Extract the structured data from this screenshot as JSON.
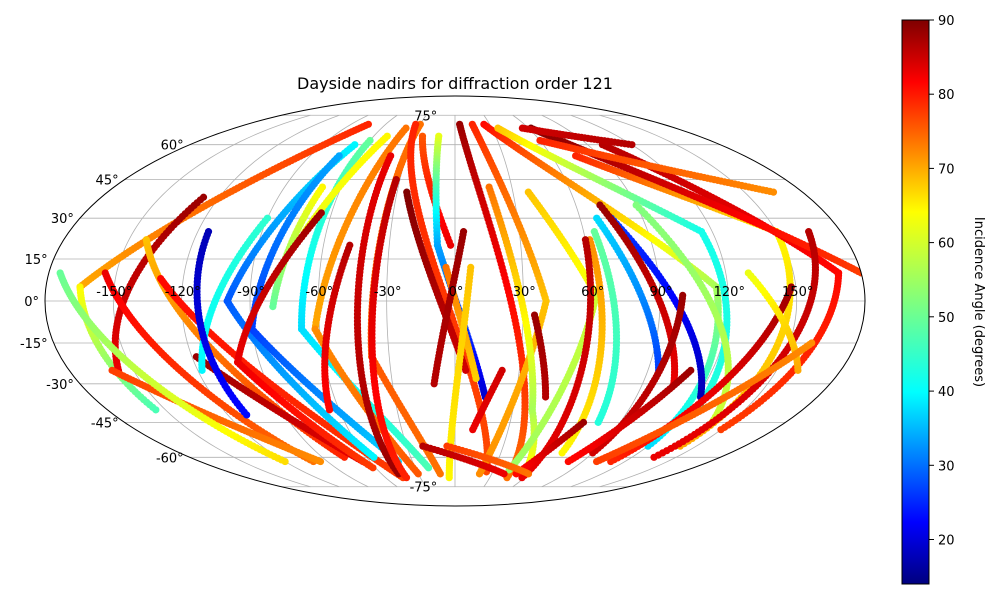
{
  "chart_data": {
    "type": "scatter",
    "title": "Dayside nadirs for diffraction order 121",
    "projection": "mollweide",
    "grid": true,
    "x_ticks": [
      "-150°",
      "-120°",
      "-90°",
      "-60°",
      "-30°",
      "0°",
      "30°",
      "60°",
      "90°",
      "120°",
      "150°"
    ],
    "y_ticks": [
      "-75°",
      "-60°",
      "-45°",
      "-30°",
      "-15°",
      "0°",
      "15°",
      "30°",
      "45°",
      "60°",
      "75°"
    ],
    "colorbar": {
      "label": "Incidence Angle (degrees)",
      "colormap": "jet",
      "range": [
        14,
        90
      ],
      "ticks": [
        "20",
        "30",
        "40",
        "50",
        "60",
        "70",
        "80",
        "90"
      ]
    },
    "lat_range": [
      -70,
      70
    ],
    "tracks": [
      {
        "lon_start": -75,
        "lat_start": 70,
        "lon_end": -165,
        "lat_end": 5,
        "inc_start": 78,
        "inc_end": 68
      },
      {
        "lon_start": -165,
        "lat_start": 5,
        "lon_end": -155,
        "lat_end": -40,
        "inc_start": 62,
        "inc_end": 48
      },
      {
        "lon_start": -128,
        "lat_start": 38,
        "lon_end": -157,
        "lat_end": -25,
        "inc_start": 88,
        "inc_end": 82
      },
      {
        "lon_start": -155,
        "lat_start": 10,
        "lon_end": -100,
        "lat_end": -62,
        "inc_start": 82,
        "inc_end": 72
      },
      {
        "lon_start": -142,
        "lat_start": 22,
        "lon_end": -75,
        "lat_end": -60,
        "inc_start": 66,
        "inc_end": 78
      },
      {
        "lon_start": -130,
        "lat_start": 8,
        "lon_end": -45,
        "lat_end": -70,
        "inc_start": 80,
        "inc_end": 76
      },
      {
        "lon_start": -118,
        "lat_start": -20,
        "lon_end": -65,
        "lat_end": -62,
        "inc_start": 88,
        "inc_end": 82
      },
      {
        "lon_start": -90,
        "lat_start": 30,
        "lon_end": -118,
        "lat_end": -25,
        "inc_start": 46,
        "inc_end": 42
      },
      {
        "lon_start": -115,
        "lat_start": 25,
        "lon_end": -110,
        "lat_end": -42,
        "inc_start": 18,
        "inc_end": 24
      },
      {
        "lon_start": -68,
        "lat_start": 60,
        "lon_end": -100,
        "lat_end": 0,
        "inc_start": 42,
        "inc_end": 30
      },
      {
        "lon_start": -100,
        "lat_start": 0,
        "lon_end": -55,
        "lat_end": -60,
        "inc_start": 30,
        "inc_end": 42
      },
      {
        "lon_start": -72,
        "lat_start": 55,
        "lon_end": -90,
        "lat_end": -10,
        "inc_start": 36,
        "inc_end": 28
      },
      {
        "lon_start": -90,
        "lat_start": -10,
        "lon_end": -40,
        "lat_end": -62,
        "inc_start": 28,
        "inc_end": 40
      },
      {
        "lon_start": -70,
        "lat_start": 42,
        "lon_end": -80,
        "lat_end": -2,
        "inc_start": 62,
        "inc_end": 50
      },
      {
        "lon_start": -60,
        "lat_start": 62,
        "lon_end": -68,
        "lat_end": -10,
        "inc_start": 50,
        "inc_end": 40
      },
      {
        "lon_start": -68,
        "lat_start": -10,
        "lon_end": -20,
        "lat_end": -65,
        "inc_start": 40,
        "inc_end": 48
      },
      {
        "lon_start": -50,
        "lat_start": 64,
        "lon_end": -70,
        "lat_end": 25,
        "inc_start": 62,
        "inc_end": 60
      },
      {
        "lon_start": -65,
        "lat_start": 32,
        "lon_end": -100,
        "lat_end": -22,
        "inc_start": 88,
        "inc_end": 82
      },
      {
        "lon_start": -100,
        "lat_start": -22,
        "lon_end": -62,
        "lat_end": -65,
        "inc_start": 82,
        "inc_end": 76
      },
      {
        "lon_start": -40,
        "lat_start": 68,
        "lon_end": -62,
        "lat_end": -10,
        "inc_start": 72,
        "inc_end": 68
      },
      {
        "lon_start": -62,
        "lat_start": -10,
        "lon_end": -30,
        "lat_end": -68,
        "inc_start": 70,
        "inc_end": 74
      },
      {
        "lon_start": -40,
        "lat_start": 55,
        "lon_end": -46,
        "lat_end": -68,
        "inc_start": 82,
        "inc_end": 88
      },
      {
        "lon_start": -48,
        "lat_start": 20,
        "lon_end": -65,
        "lat_end": -40,
        "inc_start": 86,
        "inc_end": 80
      },
      {
        "lon_start": -30,
        "lat_start": 70,
        "lon_end": -38,
        "lat_end": -20,
        "inc_start": 72,
        "inc_end": 74
      },
      {
        "lon_start": -38,
        "lat_start": -20,
        "lon_end": -12,
        "lat_end": -68,
        "inc_start": 74,
        "inc_end": 72
      },
      {
        "lon_start": -34,
        "lat_start": 70,
        "lon_end": 25,
        "lat_end": -67,
        "inc_start": 78,
        "inc_end": 75
      },
      {
        "lon_start": -32,
        "lat_start": 45,
        "lon_end": -42,
        "lat_end": -70,
        "inc_start": 86,
        "inc_end": 78
      },
      {
        "lon_start": -25,
        "lat_start": 40,
        "lon_end": 5,
        "lat_end": -25,
        "inc_start": 90,
        "inc_end": 84
      },
      {
        "lon_start": -24,
        "lat_start": 64,
        "lon_end": -2,
        "lat_end": 20,
        "inc_start": 74,
        "inc_end": 82
      },
      {
        "lon_start": -12,
        "lat_start": 64,
        "lon_end": -8,
        "lat_end": 20,
        "inc_start": 60,
        "inc_end": 36
      },
      {
        "lon_start": -8,
        "lat_start": 20,
        "lon_end": 15,
        "lat_end": -35,
        "inc_start": 36,
        "inc_end": 20
      },
      {
        "lon_start": -4,
        "lat_start": 12,
        "lon_end": 10,
        "lat_end": -28,
        "inc_start": 72,
        "inc_end": 65
      },
      {
        "lon_start": 4,
        "lat_start": 25,
        "lon_end": -10,
        "lat_end": -30,
        "inc_start": 88,
        "inc_end": 86
      },
      {
        "lon_start": 7,
        "lat_start": 12,
        "lon_end": -5,
        "lat_end": -70,
        "inc_start": 66,
        "inc_end": 62
      },
      {
        "lon_start": 4,
        "lat_start": 70,
        "lon_end": 45,
        "lat_end": -70,
        "inc_start": 88,
        "inc_end": 72
      },
      {
        "lon_start": 15,
        "lat_start": 70,
        "lon_end": 40,
        "lat_end": 0,
        "inc_start": 78,
        "inc_end": 66
      },
      {
        "lon_start": 40,
        "lat_start": 0,
        "lon_end": 20,
        "lat_end": -68,
        "inc_start": 66,
        "inc_end": 70
      },
      {
        "lon_start": 18,
        "lat_start": 42,
        "lon_end": 40,
        "lat_end": -40,
        "inc_start": 72,
        "inc_end": 55
      },
      {
        "lon_start": 40,
        "lat_start": -40,
        "lon_end": 55,
        "lat_end": -66,
        "inc_start": 55,
        "inc_end": 62
      },
      {
        "lon_start": 22,
        "lat_start": -25,
        "lon_end": 10,
        "lat_end": -48,
        "inc_start": 84,
        "inc_end": 82
      },
      {
        "lon_start": 38,
        "lat_start": 40,
        "lon_end": 62,
        "lat_end": 2,
        "inc_start": 66,
        "inc_end": 60
      },
      {
        "lon_start": 62,
        "lat_start": 2,
        "lon_end": 42,
        "lat_end": -66,
        "inc_start": 58,
        "inc_end": 54
      },
      {
        "lon_start": 35,
        "lat_start": -5,
        "lon_end": 45,
        "lat_end": -35,
        "inc_start": 88,
        "inc_end": 86
      },
      {
        "lon_start": 25,
        "lat_start": 70,
        "lon_end": 115,
        "lat_end": 5,
        "inc_start": 80,
        "inc_end": 55
      },
      {
        "lon_start": 115,
        "lat_start": 5,
        "lon_end": 120,
        "lat_end": -55,
        "inc_start": 55,
        "inc_end": 40
      },
      {
        "lon_start": 35,
        "lat_start": 68,
        "lon_end": 115,
        "lat_end": 25,
        "inc_start": 66,
        "inc_end": 44
      },
      {
        "lon_start": 115,
        "lat_start": 25,
        "lon_end": 125,
        "lat_end": -40,
        "inc_start": 44,
        "inc_end": 45
      },
      {
        "lon_start": 75,
        "lat_start": 30,
        "lon_end": 122,
        "lat_end": -35,
        "inc_start": 28,
        "inc_end": 18
      },
      {
        "lon_start": 68,
        "lat_start": 30,
        "lon_end": 95,
        "lat_end": -25,
        "inc_start": 40,
        "inc_end": 28
      },
      {
        "lon_start": 65,
        "lat_start": 25,
        "lon_end": 78,
        "lat_end": -45,
        "inc_start": 50,
        "inc_end": 45
      },
      {
        "lon_start": 62,
        "lat_start": 22,
        "lon_end": 70,
        "lat_end": -58,
        "inc_start": 70,
        "inc_end": 62
      },
      {
        "lon_start": 60,
        "lat_start": 22,
        "lon_end": 58,
        "lat_end": -70,
        "inc_start": 86,
        "inc_end": 82
      },
      {
        "lon_start": 72,
        "lat_start": 35,
        "lon_end": 105,
        "lat_end": -30,
        "inc_start": 88,
        "inc_end": 82
      },
      {
        "lon_start": 90,
        "lat_start": 35,
        "lon_end": 140,
        "lat_end": -45,
        "inc_start": 52,
        "inc_end": 58
      },
      {
        "lon_start": 100,
        "lat_start": 2,
        "lon_end": 90,
        "lat_end": -58,
        "inc_start": 88,
        "inc_end": 84
      },
      {
        "lon_start": 75,
        "lat_start": 55,
        "lon_end": 150,
        "lat_end": 25,
        "inc_start": 78,
        "inc_end": 62
      },
      {
        "lon_start": 150,
        "lat_start": 25,
        "lon_end": 140,
        "lat_end": -55,
        "inc_start": 62,
        "inc_end": 68
      },
      {
        "lon_start": 100,
        "lat_start": 60,
        "lon_end": 170,
        "lat_end": 10,
        "inc_start": 86,
        "inc_end": 80
      },
      {
        "lon_start": 170,
        "lat_start": 10,
        "lon_end": 150,
        "lat_end": -48,
        "inc_start": 80,
        "inc_end": 76
      },
      {
        "lon_start": 62,
        "lat_start": 68,
        "lon_end": 180,
        "lat_end": 10,
        "inc_start": 90,
        "inc_end": 76
      },
      {
        "lon_start": 165,
        "lat_start": 25,
        "lon_end": 135,
        "lat_end": -60,
        "inc_start": 86,
        "inc_end": 82
      },
      {
        "lon_start": 148,
        "lat_start": 5,
        "lon_end": 110,
        "lat_end": -62,
        "inc_start": 88,
        "inc_end": 78
      },
      {
        "lon_start": 130,
        "lat_start": 10,
        "lon_end": 160,
        "lat_end": -25,
        "inc_start": 60,
        "inc_end": 68
      },
      {
        "lon_start": 110,
        "lat_start": -25,
        "lon_end": 80,
        "lat_end": -62,
        "inc_start": 88,
        "inc_end": 80
      },
      {
        "lon_start": 70,
        "lat_start": -45,
        "lon_end": 50,
        "lat_end": -68,
        "inc_start": 88,
        "inc_end": 80
      },
      {
        "lon_start": 55,
        "lat_start": 68,
        "lon_end": 120,
        "lat_end": 60,
        "inc_start": 84,
        "inc_end": 86
      },
      {
        "lon_start": 60,
        "lat_start": 62,
        "lon_end": 165,
        "lat_end": 40,
        "inc_start": 78,
        "inc_end": 70
      },
      {
        "lon_start": -160,
        "lat_start": -25,
        "lon_end": -95,
        "lat_end": -62,
        "inc_start": 76,
        "inc_end": 70
      },
      {
        "lon_start": -175,
        "lat_start": 10,
        "lon_end": -120,
        "lat_end": -62,
        "inc_start": 50,
        "inc_end": 64
      },
      {
        "lon_start": 160,
        "lat_start": -15,
        "lon_end": 100,
        "lat_end": -62,
        "inc_start": 70,
        "inc_end": 76
      },
      {
        "lon_start": -20,
        "lat_start": -55,
        "lon_end": 40,
        "lat_end": -68,
        "inc_start": 86,
        "inc_end": 82
      },
      {
        "lon_start": -5,
        "lat_start": -55,
        "lon_end": 60,
        "lat_end": -68,
        "inc_start": 76,
        "inc_end": 72
      }
    ]
  }
}
